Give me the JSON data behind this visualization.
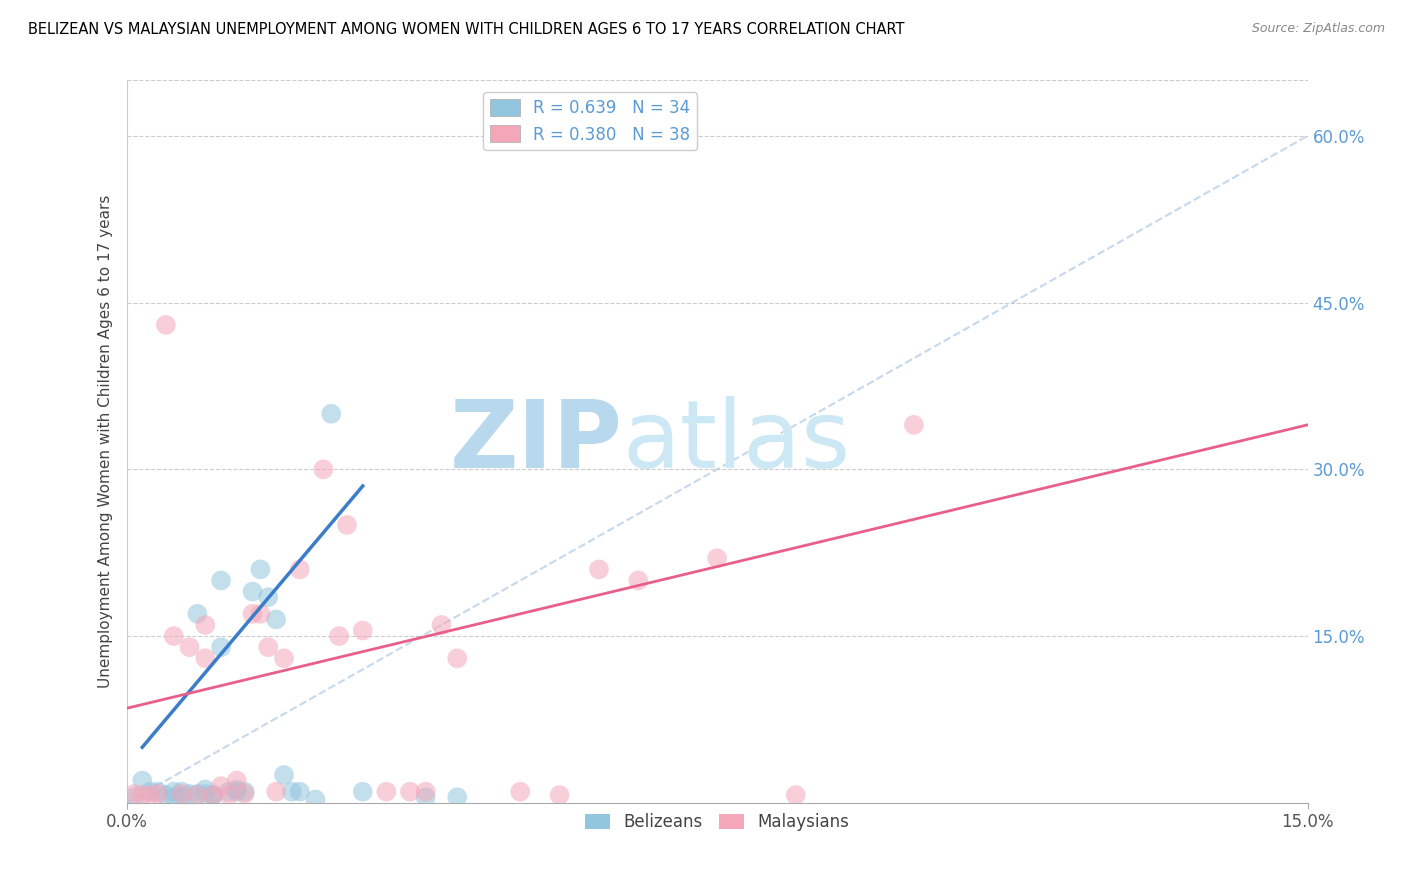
{
  "title": "BELIZEAN VS MALAYSIAN UNEMPLOYMENT AMONG WOMEN WITH CHILDREN AGES 6 TO 17 YEARS CORRELATION CHART",
  "source": "Source: ZipAtlas.com",
  "ylabel": "Unemployment Among Women with Children Ages 6 to 17 years",
  "xlim": [
    0.0,
    0.15
  ],
  "ylim": [
    0.0,
    0.65
  ],
  "xticks": [
    0.0,
    0.15
  ],
  "xticklabels": [
    "0.0%",
    "15.0%"
  ],
  "yticks_right": [
    0.0,
    0.15,
    0.3,
    0.45,
    0.6
  ],
  "ytick_right_labels": [
    "",
    "15.0%",
    "30.0%",
    "45.0%",
    "60.0%"
  ],
  "legend_r1": "R = 0.639",
  "legend_n1": "N = 34",
  "legend_r2": "R = 0.380",
  "legend_n2": "N = 38",
  "color_blue": "#92c5de",
  "color_pink": "#f4a7b9",
  "color_blue_line": "#3a7dc9",
  "color_pink_line": "#e8608a",
  "color_ref_line": "#b8cfe8",
  "watermark_zip": "ZIP",
  "watermark_atlas": "atlas",
  "watermark_color": "#cde4f5",
  "belizean_x": [
    0.001,
    0.002,
    0.003,
    0.004,
    0.005,
    0.006,
    0.006,
    0.007,
    0.007,
    0.008,
    0.009,
    0.009,
    0.01,
    0.01,
    0.011,
    0.011,
    0.012,
    0.012,
    0.013,
    0.014,
    0.014,
    0.015,
    0.016,
    0.017,
    0.018,
    0.019,
    0.02,
    0.021,
    0.022,
    0.024,
    0.026,
    0.03,
    0.038,
    0.042
  ],
  "belizean_y": [
    0.005,
    0.02,
    0.01,
    0.01,
    0.007,
    0.01,
    0.005,
    0.01,
    0.005,
    0.008,
    0.17,
    0.008,
    0.012,
    0.008,
    0.007,
    0.007,
    0.2,
    0.14,
    0.01,
    0.01,
    0.012,
    0.01,
    0.19,
    0.21,
    0.185,
    0.165,
    0.025,
    0.01,
    0.01,
    0.003,
    0.35,
    0.01,
    0.005,
    0.005
  ],
  "malaysian_x": [
    0.001,
    0.002,
    0.003,
    0.004,
    0.005,
    0.006,
    0.007,
    0.008,
    0.009,
    0.01,
    0.01,
    0.011,
    0.012,
    0.013,
    0.014,
    0.015,
    0.016,
    0.017,
    0.018,
    0.019,
    0.02,
    0.022,
    0.025,
    0.027,
    0.028,
    0.03,
    0.033,
    0.036,
    0.038,
    0.04,
    0.042,
    0.05,
    0.055,
    0.06,
    0.065,
    0.075,
    0.085,
    0.1
  ],
  "malaysian_y": [
    0.008,
    0.007,
    0.007,
    0.008,
    0.43,
    0.15,
    0.008,
    0.14,
    0.007,
    0.16,
    0.13,
    0.007,
    0.015,
    0.007,
    0.02,
    0.008,
    0.17,
    0.17,
    0.14,
    0.01,
    0.13,
    0.21,
    0.3,
    0.15,
    0.25,
    0.155,
    0.01,
    0.01,
    0.01,
    0.16,
    0.13,
    0.01,
    0.007,
    0.21,
    0.2,
    0.22,
    0.007,
    0.34
  ],
  "belize_trend_x": [
    0.002,
    0.03
  ],
  "belize_trend_y": [
    0.05,
    0.285
  ],
  "malay_trend_x": [
    0.0,
    0.15
  ],
  "malay_trend_y": [
    0.085,
    0.34
  ]
}
